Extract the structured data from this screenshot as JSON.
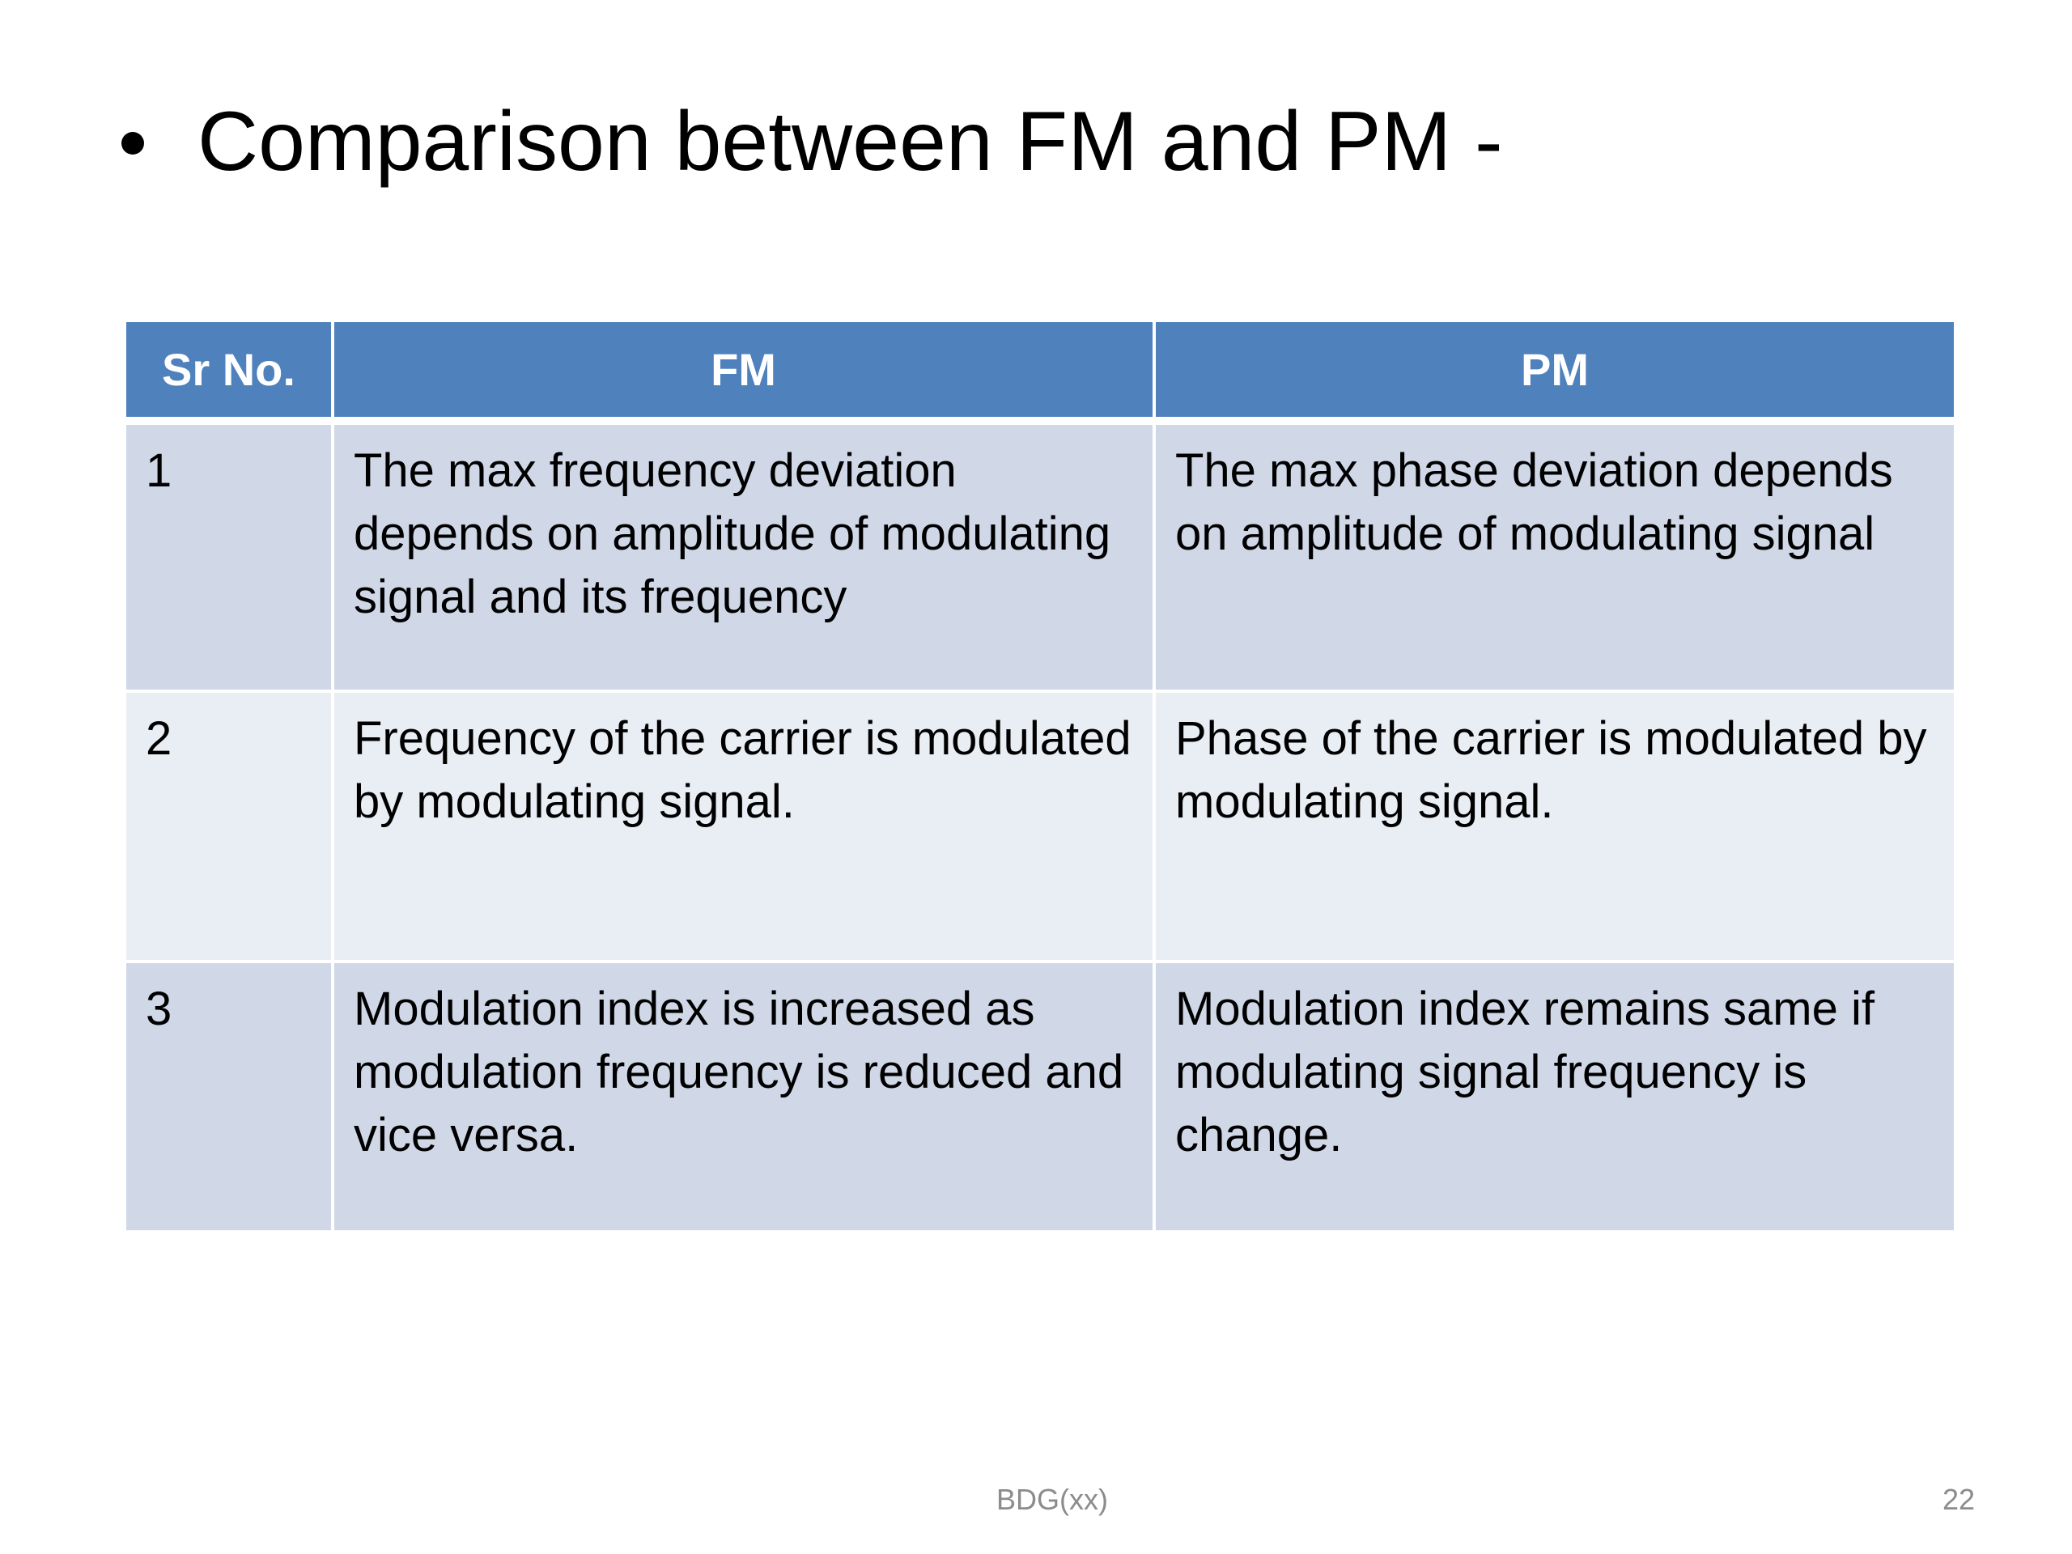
{
  "slide": {
    "title": "Comparison between FM and PM -",
    "table": {
      "headers": [
        "Sr No.",
        "FM",
        "PM"
      ],
      "rows": [
        {
          "sr": "1",
          "fm": "The max frequency deviation depends on amplitude of modulating signal and its frequency",
          "pm": "The max phase deviation  depends on amplitude of modulating signal"
        },
        {
          "sr": "2",
          "fm": "Frequency of the carrier is modulated by modulating signal.",
          "pm": "Phase of the carrier is modulated by modulating signal."
        },
        {
          "sr": "3",
          "fm": "Modulation index is increased as modulation frequency is reduced and vice versa.",
          "pm": "Modulation index remains same if modulating  signal frequency is change."
        }
      ]
    },
    "footer": {
      "label": "BDG(xx)",
      "page_number": "22"
    },
    "colors": {
      "header_bg": "#4f81bd",
      "row_odd_bg": "#d0d8e8",
      "row_even_bg": "#e9edf4",
      "footer_text": "#8c8c8c"
    }
  }
}
